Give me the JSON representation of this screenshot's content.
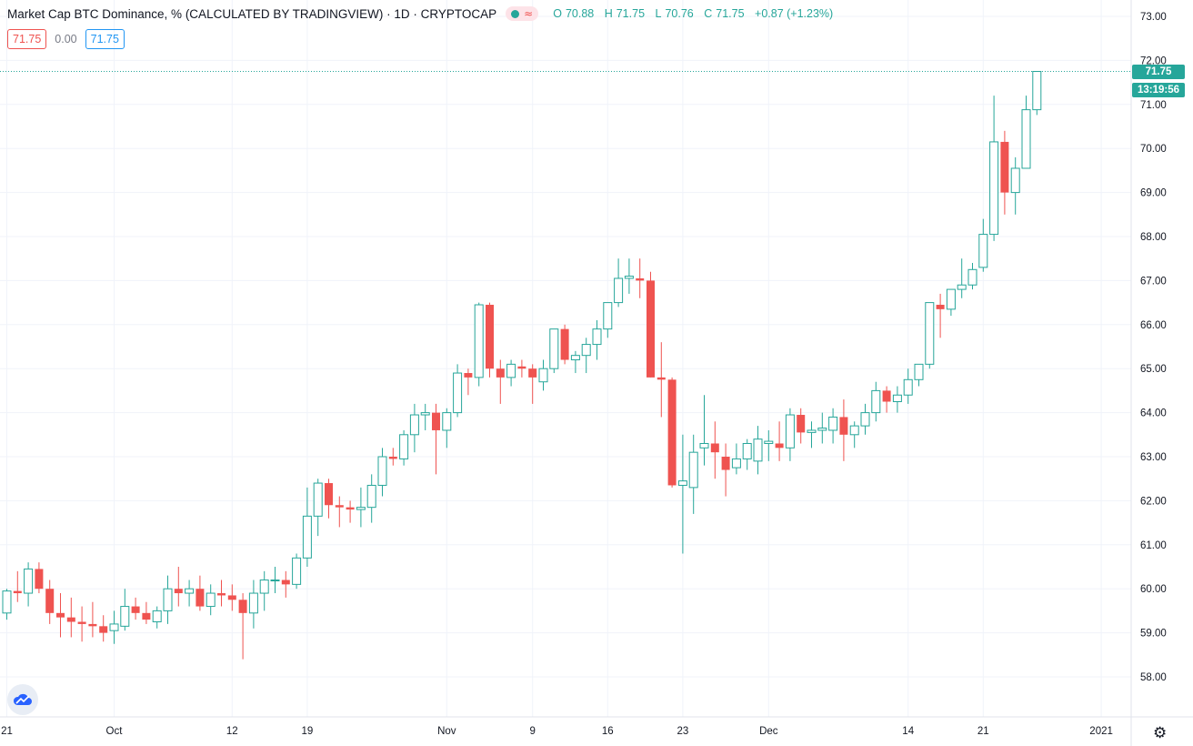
{
  "legend": {
    "title": "Market Cap BTC Dominance, % (CALCULATED BY TRADINGVIEW) · 1D · CRYPTOCAP",
    "wave_symbol": "≈",
    "open_label": "O",
    "open": "70.88",
    "high_label": "H",
    "high": "71.75",
    "low_label": "L",
    "low": "70.76",
    "close_label": "C",
    "close": "71.75",
    "change": "+0.87 (+1.23%)",
    "sell": "71.75",
    "spread": "0.00",
    "buy": "71.75"
  },
  "price_tag": {
    "value": "71.75",
    "countdown": "13:19:56"
  },
  "colors": {
    "up": "#26a69a",
    "down": "#ef5350",
    "grid": "#f0f3fa",
    "axis_text": "#131722"
  },
  "icons": {
    "logo": "tradingview-cloud-icon",
    "settings": "gear-icon"
  },
  "settings_glyph": "⚙",
  "chart_data": {
    "type": "candlestick",
    "interval": "1D",
    "symbol": "CRYPTOCAP:BTC.D",
    "ylim": [
      57.0,
      73.4
    ],
    "y_ticks": [
      "58.00",
      "59.00",
      "60.00",
      "61.00",
      "62.00",
      "63.00",
      "64.00",
      "65.00",
      "66.00",
      "67.00",
      "68.00",
      "69.00",
      "70.00",
      "71.00",
      "72.00",
      "73.00"
    ],
    "x_ticks": [
      {
        "index": 0,
        "label": "21"
      },
      {
        "index": 10,
        "label": "Oct"
      },
      {
        "index": 21,
        "label": "12"
      },
      {
        "index": 28,
        "label": "19"
      },
      {
        "index": 41,
        "label": "Nov"
      },
      {
        "index": 49,
        "label": "9"
      },
      {
        "index": 56,
        "label": "16"
      },
      {
        "index": 63,
        "label": "23"
      },
      {
        "index": 71,
        "label": "Dec"
      },
      {
        "index": 84,
        "label": "14"
      },
      {
        "index": 91,
        "label": "21"
      },
      {
        "index": 102,
        "label": "2021"
      }
    ],
    "last_price": 71.75,
    "candles": [
      [
        59.45,
        60.0,
        59.3,
        59.95
      ],
      [
        59.95,
        60.4,
        59.7,
        59.9
      ],
      [
        59.9,
        60.6,
        59.6,
        60.45
      ],
      [
        60.45,
        60.6,
        59.9,
        60.0
      ],
      [
        60.0,
        60.2,
        59.2,
        59.45
      ],
      [
        59.45,
        59.9,
        58.9,
        59.35
      ],
      [
        59.35,
        59.8,
        58.9,
        59.25
      ],
      [
        59.25,
        59.6,
        58.8,
        59.2
      ],
      [
        59.2,
        59.7,
        58.9,
        59.15
      ],
      [
        59.15,
        59.4,
        58.8,
        59.0
      ],
      [
        59.05,
        59.5,
        58.75,
        59.2
      ],
      [
        59.15,
        60.0,
        59.05,
        59.6
      ],
      [
        59.6,
        59.8,
        59.3,
        59.45
      ],
      [
        59.45,
        59.7,
        59.2,
        59.3
      ],
      [
        59.25,
        59.6,
        59.1,
        59.5
      ],
      [
        59.5,
        60.3,
        59.2,
        60.0
      ],
      [
        60.0,
        60.5,
        59.6,
        59.9
      ],
      [
        59.9,
        60.2,
        59.6,
        60.0
      ],
      [
        60.0,
        60.3,
        59.5,
        59.6
      ],
      [
        59.6,
        60.1,
        59.4,
        59.9
      ],
      [
        59.9,
        60.2,
        59.6,
        59.85
      ],
      [
        59.85,
        60.1,
        59.5,
        59.75
      ],
      [
        59.75,
        59.9,
        58.4,
        59.45
      ],
      [
        59.45,
        60.2,
        59.1,
        59.9
      ],
      [
        59.9,
        60.4,
        59.5,
        60.2
      ],
      [
        60.2,
        60.5,
        59.9,
        60.2
      ],
      [
        60.2,
        60.4,
        59.8,
        60.1
      ],
      [
        60.1,
        60.8,
        60.0,
        60.7
      ],
      [
        60.7,
        62.3,
        60.5,
        61.65
      ],
      [
        61.65,
        62.5,
        61.2,
        62.4
      ],
      [
        62.4,
        62.5,
        61.6,
        61.9
      ],
      [
        61.9,
        62.1,
        61.4,
        61.85
      ],
      [
        61.85,
        62.0,
        61.5,
        61.8
      ],
      [
        61.8,
        62.3,
        61.4,
        61.85
      ],
      [
        61.85,
        62.6,
        61.5,
        62.35
      ],
      [
        62.35,
        63.2,
        62.1,
        63.0
      ],
      [
        63.0,
        63.2,
        62.8,
        62.95
      ],
      [
        62.95,
        63.6,
        62.8,
        63.5
      ],
      [
        63.5,
        64.2,
        63.1,
        63.95
      ],
      [
        63.95,
        64.2,
        63.6,
        64.0
      ],
      [
        64.0,
        64.2,
        62.6,
        63.6
      ],
      [
        63.6,
        64.1,
        63.2,
        64.0
      ],
      [
        64.0,
        65.1,
        63.9,
        64.9
      ],
      [
        64.9,
        65.0,
        64.4,
        64.8
      ],
      [
        64.8,
        66.5,
        64.6,
        66.45
      ],
      [
        66.45,
        66.5,
        64.8,
        65.0
      ],
      [
        65.0,
        65.2,
        64.2,
        64.8
      ],
      [
        64.8,
        65.2,
        64.6,
        65.1
      ],
      [
        65.05,
        65.2,
        64.8,
        65.0
      ],
      [
        65.0,
        65.1,
        64.2,
        64.8
      ],
      [
        64.7,
        65.2,
        64.5,
        65.0
      ],
      [
        65.0,
        65.9,
        64.9,
        65.9
      ],
      [
        65.9,
        66.0,
        65.1,
        65.2
      ],
      [
        65.2,
        65.4,
        64.9,
        65.3
      ],
      [
        65.3,
        65.7,
        64.9,
        65.55
      ],
      [
        65.55,
        66.1,
        65.2,
        65.9
      ],
      [
        65.9,
        66.5,
        65.7,
        66.5
      ],
      [
        66.5,
        67.5,
        66.4,
        67.05
      ],
      [
        67.05,
        67.5,
        66.7,
        67.1
      ],
      [
        67.05,
        67.5,
        66.6,
        67.0
      ],
      [
        67.0,
        67.2,
        64.8,
        64.8
      ],
      [
        64.8,
        65.6,
        63.9,
        64.75
      ],
      [
        64.75,
        64.8,
        62.3,
        62.35
      ],
      [
        62.35,
        63.5,
        60.8,
        62.45
      ],
      [
        62.3,
        63.5,
        61.7,
        63.1
      ],
      [
        63.2,
        64.4,
        62.8,
        63.3
      ],
      [
        63.3,
        63.8,
        62.5,
        63.1
      ],
      [
        63.0,
        63.3,
        62.1,
        62.7
      ],
      [
        62.75,
        63.3,
        62.6,
        62.95
      ],
      [
        62.95,
        63.4,
        62.7,
        63.3
      ],
      [
        62.9,
        63.7,
        62.6,
        63.4
      ],
      [
        63.3,
        63.6,
        62.9,
        63.35
      ],
      [
        63.3,
        63.8,
        62.9,
        63.2
      ],
      [
        63.2,
        64.1,
        62.9,
        63.95
      ],
      [
        63.95,
        64.1,
        63.3,
        63.55
      ],
      [
        63.55,
        63.8,
        63.2,
        63.6
      ],
      [
        63.6,
        64.0,
        63.3,
        63.65
      ],
      [
        63.6,
        64.1,
        63.3,
        63.9
      ],
      [
        63.9,
        64.3,
        62.9,
        63.5
      ],
      [
        63.5,
        63.8,
        63.2,
        63.7
      ],
      [
        63.7,
        64.2,
        63.5,
        64.0
      ],
      [
        64.0,
        64.7,
        63.8,
        64.5
      ],
      [
        64.5,
        64.6,
        64.0,
        64.25
      ],
      [
        64.25,
        64.6,
        64.0,
        64.4
      ],
      [
        64.4,
        65.0,
        64.2,
        64.75
      ],
      [
        64.75,
        65.1,
        64.6,
        65.1
      ],
      [
        65.1,
        66.5,
        65.0,
        66.5
      ],
      [
        66.45,
        66.7,
        65.7,
        66.35
      ],
      [
        66.35,
        66.8,
        66.2,
        66.8
      ],
      [
        66.8,
        67.5,
        66.6,
        66.9
      ],
      [
        66.9,
        67.4,
        66.8,
        67.25
      ],
      [
        67.3,
        68.4,
        67.2,
        68.05
      ],
      [
        68.05,
        71.2,
        67.9,
        70.15
      ],
      [
        70.15,
        70.4,
        68.5,
        69.0
      ],
      [
        69.0,
        69.8,
        68.5,
        69.55
      ],
      [
        69.55,
        71.2,
        69.55,
        70.88
      ],
      [
        70.88,
        71.75,
        70.76,
        71.75
      ]
    ]
  }
}
